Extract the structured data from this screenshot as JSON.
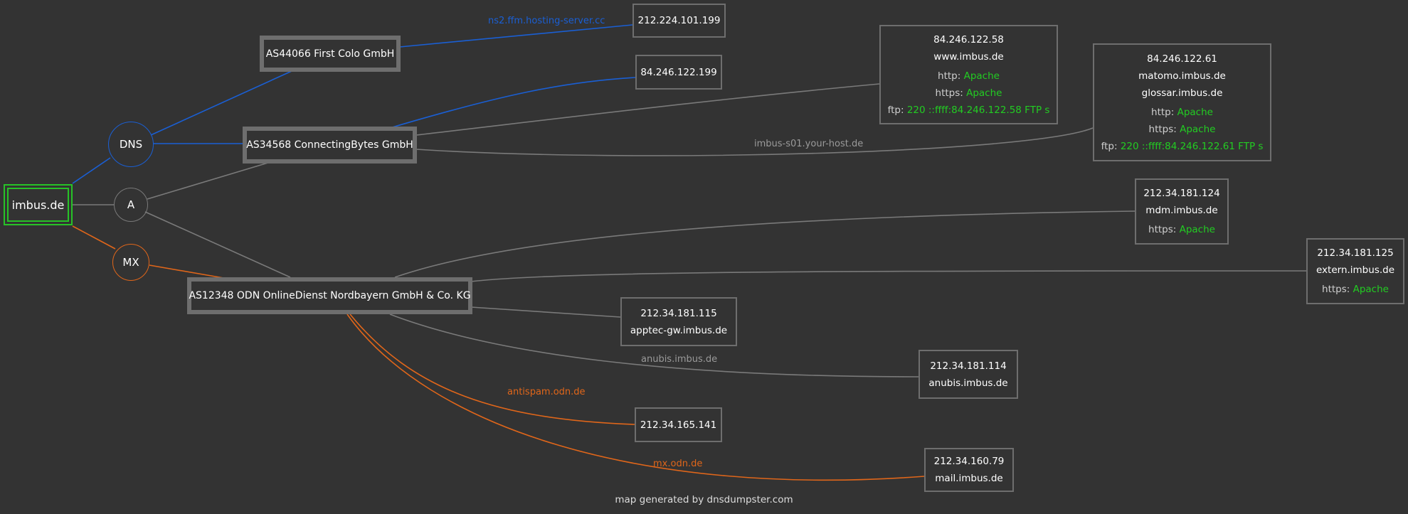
{
  "root": {
    "label": "imbus.de"
  },
  "records": {
    "dns": "DNS",
    "a": "A",
    "mx": "MX"
  },
  "asns": {
    "firstcolo": "AS44066 First Colo GmbH",
    "connectingbytes": "AS34568 ConnectingBytes GmbH",
    "odn": "AS12348 ODN OnlineDienst Nordbayern GmbH & Co. KG"
  },
  "hosts": {
    "ns2": {
      "ip": "212.224.101.199"
    },
    "ns_other": {
      "ip": "84.246.122.199"
    },
    "www": {
      "ip": "84.246.122.58",
      "name": "www.imbus.de",
      "services": [
        {
          "label": "http:",
          "value": "Apache"
        },
        {
          "label": "https:",
          "value": "Apache"
        },
        {
          "label": "ftp:",
          "value": "220 ::ffff:84.246.122.58 FTP s"
        }
      ]
    },
    "matomo": {
      "ip": "84.246.122.61",
      "name1": "matomo.imbus.de",
      "name2": "glossar.imbus.de",
      "services": [
        {
          "label": "http:",
          "value": "Apache"
        },
        {
          "label": "https:",
          "value": "Apache"
        },
        {
          "label": "ftp:",
          "value": "220 ::ffff:84.246.122.61 FTP s"
        }
      ]
    },
    "mdm": {
      "ip": "212.34.181.124",
      "name": "mdm.imbus.de",
      "services": [
        {
          "label": "https:",
          "value": "Apache"
        }
      ]
    },
    "extern": {
      "ip": "212.34.181.125",
      "name": "extern.imbus.de",
      "services": [
        {
          "label": "https:",
          "value": "Apache"
        }
      ]
    },
    "apptec": {
      "ip": "212.34.181.115",
      "name": "apptec-gw.imbus.de"
    },
    "anubis": {
      "ip": "212.34.181.114",
      "name": "anubis.imbus.de"
    },
    "antispam": {
      "ip": "212.34.165.141"
    },
    "mail": {
      "ip": "212.34.160.79",
      "name": "mail.imbus.de"
    }
  },
  "edge_labels": {
    "ns2": "ns2.ffm.hosting-server.cc",
    "imbus_s01": "imbus-s01.your-host.de",
    "anubis": "anubis.imbus.de",
    "antispam": "antispam.odn.de",
    "mx": "mx.odn.de"
  },
  "colors": {
    "background": "#333333",
    "dns": "#1a5fd4",
    "mx": "#e0661a",
    "a": "#8a8a8a",
    "root": "#27c227",
    "service_ok": "#22cc22"
  },
  "footer": "map generated by dnsdumpster.com"
}
